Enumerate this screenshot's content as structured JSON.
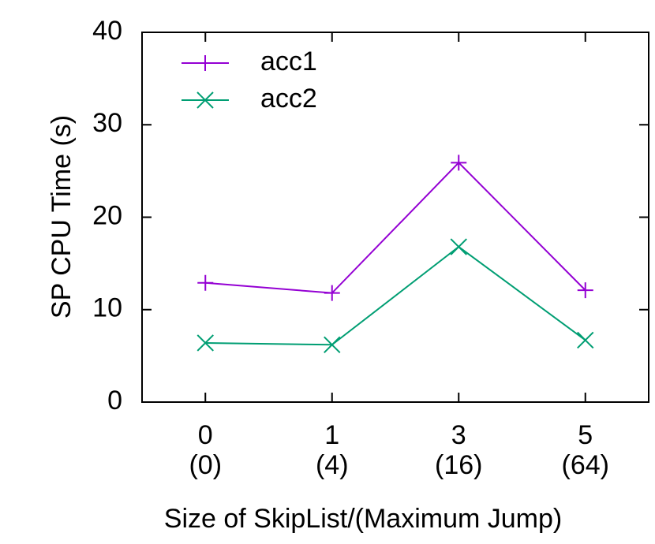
{
  "chart_data": {
    "type": "line",
    "xlabel": "Size of SkipList/(Maximum Jump)",
    "ylabel": "SP CPU Time (s)",
    "categories": [
      "0\n(0)",
      "1\n(4)",
      "3\n(16)",
      "5\n(64)"
    ],
    "series": [
      {
        "name": "acc1",
        "color": "#9400d3",
        "marker": "plus",
        "values": [
          12.9,
          11.8,
          25.9,
          12.1
        ]
      },
      {
        "name": "acc2",
        "color": "#009e73",
        "marker": "cross",
        "values": [
          6.4,
          6.2,
          16.8,
          6.7
        ]
      }
    ],
    "ylim": [
      0,
      40
    ],
    "yticks": [
      0,
      10,
      20,
      30,
      40
    ],
    "grid": false,
    "legend": "top-left"
  }
}
